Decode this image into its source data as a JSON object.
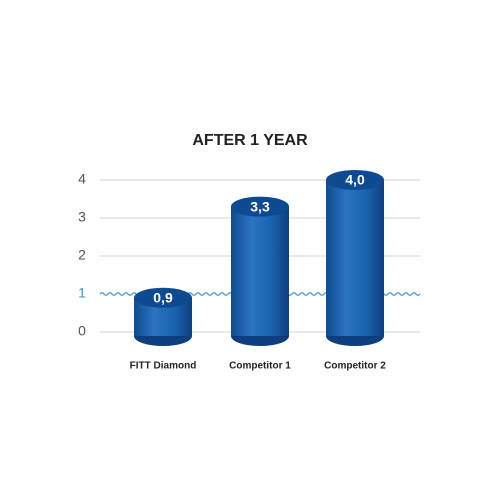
{
  "chart_data": {
    "type": "cylinder",
    "title": "AFTER 1 YEAR",
    "categories": [
      "FITT Diamond",
      "Competitor 1",
      "Competitor 2"
    ],
    "values": [
      0.9,
      3.3,
      4.0
    ],
    "value_labels": [
      "0,9",
      "3,3",
      "4,0"
    ],
    "color": "#1b62ad",
    "ylim": [
      0,
      4
    ],
    "yticks": [
      0,
      1,
      2,
      3,
      4
    ],
    "grid": true,
    "reference_line": 1,
    "reference_color": "#3a93d2"
  }
}
